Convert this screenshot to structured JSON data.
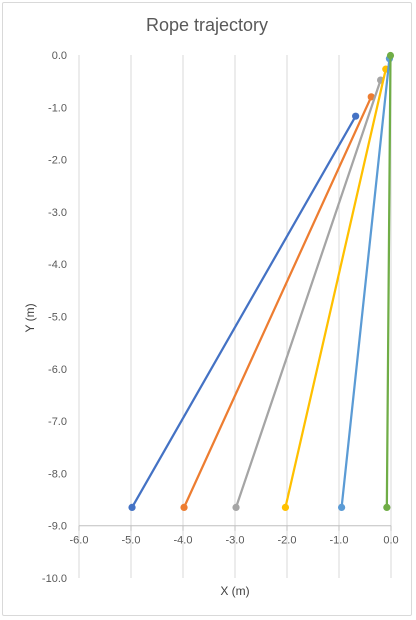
{
  "chart_data": {
    "type": "scatter",
    "title": "Rope trajectory",
    "xlabel": "X (m)",
    "ylabel": "Y (m)",
    "xlim": [
      -6.0,
      0.0
    ],
    "ylim": [
      -10.0,
      0.0
    ],
    "x_ticks": [
      -6.0,
      -5.0,
      -4.0,
      -3.0,
      -2.0,
      -1.0,
      0.0
    ],
    "y_ticks": [
      0.0,
      -1.0,
      -2.0,
      -3.0,
      -4.0,
      -5.0,
      -6.0,
      -7.0,
      -8.0,
      -9.0,
      -10.0
    ],
    "x_tick_labels": [
      "-6.0",
      "-5.0",
      "-4.0",
      "-3.0",
      "-2.0",
      "-1.0",
      "0.0"
    ],
    "y_tick_labels": [
      "0.0",
      "-1.0",
      "-2.0",
      "-3.0",
      "-4.0",
      "-5.0",
      "-6.0",
      "-7.0",
      "-8.0",
      "-9.0",
      "-10.0"
    ],
    "grid": "vertical",
    "legend": "none",
    "series": [
      {
        "color": "#4472c4",
        "points": [
          [
            -4.98,
            -8.65
          ],
          [
            -0.68,
            -1.17
          ]
        ]
      },
      {
        "color": "#ed7d31",
        "points": [
          [
            -3.98,
            -8.65
          ],
          [
            -0.38,
            -0.8
          ]
        ]
      },
      {
        "color": "#a5a5a5",
        "points": [
          [
            -2.98,
            -8.65
          ],
          [
            -0.2,
            -0.48
          ]
        ]
      },
      {
        "color": "#ffc000",
        "points": [
          [
            -2.03,
            -8.65
          ],
          [
            -0.1,
            -0.27
          ]
        ]
      },
      {
        "color": "#5b9bd5",
        "points": [
          [
            -0.95,
            -8.65
          ],
          [
            -0.03,
            -0.07
          ]
        ]
      },
      {
        "color": "#70ad47",
        "points": [
          [
            -0.08,
            -8.65
          ],
          [
            -0.01,
            -0.01
          ]
        ]
      }
    ]
  }
}
